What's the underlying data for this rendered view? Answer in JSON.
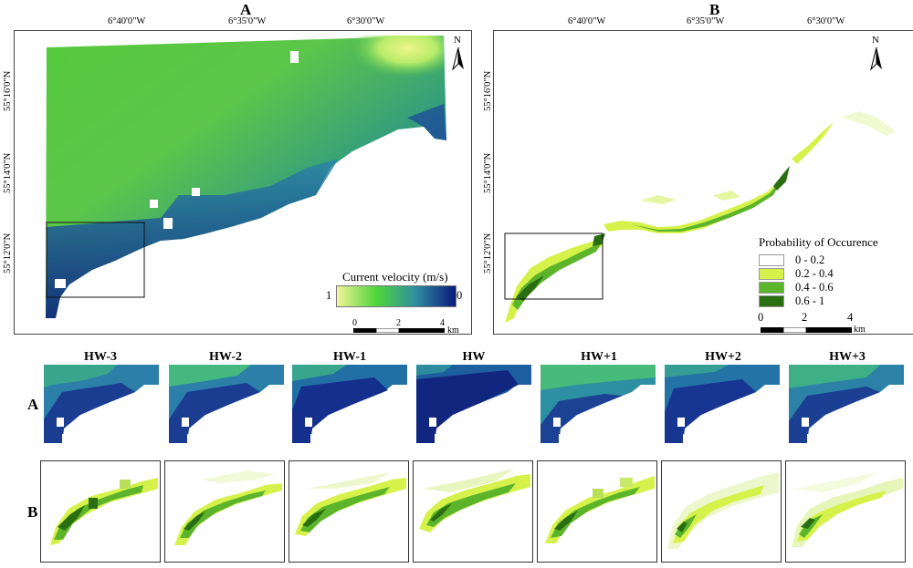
{
  "panel_a": {
    "letter": "A",
    "lon_labels": [
      "6°40'0\"W",
      "6°35'0\"W",
      "6°30'0\"W"
    ],
    "lat_labels": [
      "55°16'0\"N",
      "55°14'0\"N",
      "55°12'0\"N"
    ],
    "north_label": "N",
    "legend": {
      "title": "Current velocity (m/s)",
      "min_label": "1",
      "max_label": "0",
      "colors": [
        "#f3f39a",
        "#4fd638",
        "#2f8ea0",
        "#0c1b7d"
      ]
    },
    "scalebar": {
      "labels": [
        "0",
        "2",
        "4"
      ],
      "unit": "km"
    }
  },
  "panel_b": {
    "letter": "B",
    "lon_labels": [
      "6°40'0\"W",
      "6°35'0\"W",
      "6°30'0\"W"
    ],
    "lat_labels": [
      "55°16'0\"N",
      "55°14'0\"N",
      "55°12'0\"N"
    ],
    "north_label": "N",
    "legend": {
      "title": "Probability of Occurence",
      "items": [
        {
          "label": "0 - 0.2",
          "color": "#ffffff"
        },
        {
          "label": "0.2 - 0.4",
          "color": "#d6f24a"
        },
        {
          "label": "0.4 - 0.6",
          "color": "#5bb42a"
        },
        {
          "label": "0.6 - 1",
          "color": "#2a6e12"
        }
      ]
    },
    "scalebar": {
      "labels": [
        "0",
        "2",
        "4"
      ],
      "unit": "km"
    }
  },
  "time_series": {
    "row_a_label": "A",
    "row_b_label": "B",
    "steps": [
      "HW-3",
      "HW-2",
      "HW-1",
      "HW",
      "HW+1",
      "HW+2",
      "HW+3"
    ]
  }
}
